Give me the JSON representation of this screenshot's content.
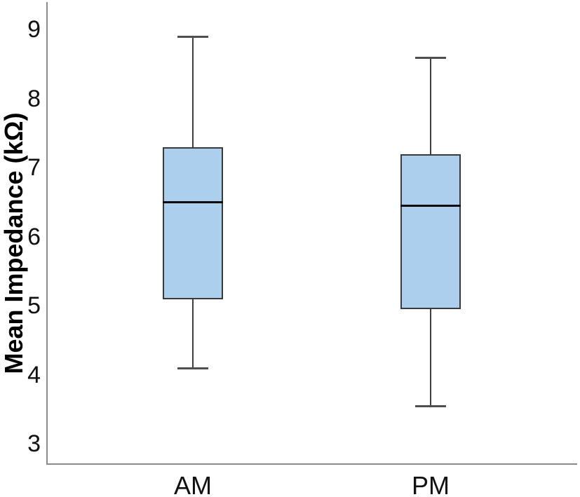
{
  "chart_data": {
    "type": "boxplot",
    "title": "",
    "xlabel": "",
    "ylabel": "Mean Impedance (kΩ)",
    "ylim": [
      2.7,
      9.4
    ],
    "y_ticks": [
      3,
      4,
      5,
      6,
      7,
      8,
      9
    ],
    "categories": [
      "AM",
      "PM"
    ],
    "series": [
      {
        "name": "AM",
        "whisker_low": 4.1,
        "q1": 5.1,
        "median": 6.5,
        "q3": 7.3,
        "whisker_high": 8.9
      },
      {
        "name": "PM",
        "whisker_low": 3.55,
        "q1": 4.95,
        "median": 6.45,
        "q3": 7.2,
        "whisker_high": 8.6
      }
    ],
    "grid": false,
    "legend": "none",
    "colors": {
      "box_fill": "#abcfec",
      "box_border": "#3a3a3a",
      "median": "#0a0a0a",
      "whisker": "#3f3f3f",
      "whisker_cap": "#4f4f4f",
      "axis": "#8a8a8a",
      "text": "#111111",
      "background": "#ffffff"
    }
  }
}
